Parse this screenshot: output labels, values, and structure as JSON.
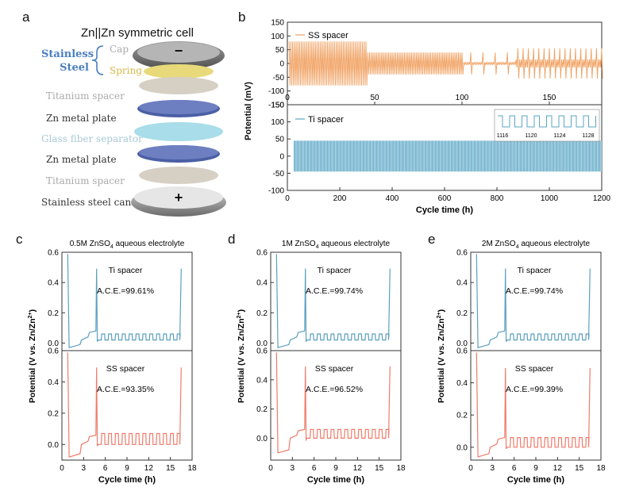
{
  "panel_labels": {
    "a": "a",
    "b": "b",
    "c": "c",
    "d": "d",
    "e": "e"
  },
  "panel_a": {
    "title": "Zn||Zn symmetric cell",
    "stainless_steel_group": "Stainless\nSteel",
    "cap": "Cap",
    "spring": "Spring",
    "layers": [
      "Titanium spacer",
      "Zn metal plate",
      "Glass fiber separator",
      "Zn metal plate",
      "Titanium spacer",
      "Stainless steel can"
    ],
    "minus_sign": "−",
    "plus_sign": "+",
    "colors": {
      "stainless_label": "#4a7fc1",
      "cap_label": "#aaaaaa",
      "spring_label": "#d4b84a"
    }
  },
  "chart_data": [
    {
      "id": "b",
      "type": "line",
      "ylabel": "Potential (mV)",
      "xlabel": "Cycle time (h)",
      "top": {
        "legend": "SS spacer",
        "color": "#f0a060",
        "xticks": [
          "0",
          "50",
          "100",
          "150"
        ],
        "yticks": [
          "150",
          "100",
          "50",
          "0",
          "-50",
          "-100",
          "-150"
        ],
        "xlim": [
          0,
          180
        ],
        "ylim": [
          -150,
          150
        ],
        "amplitude_mV": [
          80,
          40,
          10,
          55
        ],
        "segments_end_cycle": [
          45,
          100,
          130,
          180
        ]
      },
      "bottom": {
        "legend": "Ti spacer",
        "color": "#5aa5c5",
        "xticks": [
          "0",
          "200",
          "400",
          "600",
          "800",
          "1000",
          "1200"
        ],
        "yticks": [
          "150",
          "100",
          "50",
          "0",
          "-50",
          "-100"
        ],
        "xlim": [
          0,
          1200
        ],
        "ylim": [
          -100,
          150
        ],
        "amplitude_mV": 45,
        "inset_ticks": [
          "1116",
          "1120",
          "1124",
          "1128"
        ]
      }
    },
    {
      "id": "c",
      "type": "line",
      "title": "0.5M ZnSO4 aqueous electrolyte",
      "title_main": "0.5M ZnSO",
      "title_sub": "4",
      "title_tail": " aqueous electrolyte",
      "xlabel": "Cycle time (h)",
      "ylabel": "Potential (V vs. Zn/Zn2+)",
      "xticks": [
        "0",
        "3",
        "6",
        "9",
        "12",
        "15",
        "18"
      ],
      "xlim": [
        0,
        18
      ],
      "series": [
        {
          "name": "Ti spacer",
          "ace": "A.C.E.=99.61%",
          "color": "#5b9fbf",
          "yticks": [
            "0.6",
            "0.4",
            "0.2",
            "0.0"
          ],
          "ylim": [
            -0.05,
            0.6
          ],
          "spikes": [
            1.0,
            4.8,
            16.4
          ],
          "plateau_low": -0.03,
          "plateau_mid": 0.02,
          "cycle_amp": 0.04
        },
        {
          "name": "SS spacer",
          "ace": "A.C.E.=93.35%",
          "color": "#ef7b6a",
          "yticks": [
            "0.6",
            "0.4",
            "0.2",
            "0.0"
          ],
          "ylim": [
            -0.1,
            0.6
          ],
          "spikes": [
            1.0,
            4.8,
            16.4
          ],
          "plateau_low": -0.08,
          "plateau_mid": 0.0,
          "cycle_amp": 0.07
        }
      ]
    },
    {
      "id": "d",
      "type": "line",
      "title": "1M ZnSO4 aqueous electrolyte",
      "title_main": "1M ZnSO",
      "title_sub": "4",
      "title_tail": " aqueous electrolyte",
      "xlabel": "Cycle time (h)",
      "ylabel": "Potential (V vs. Zn/Zn2+)",
      "xticks": [
        "0",
        "3",
        "6",
        "9",
        "12",
        "15",
        "18"
      ],
      "xlim": [
        0,
        18
      ],
      "series": [
        {
          "name": "Ti spacer",
          "ace": "A.C.E.=99.74%",
          "color": "#5b9fbf",
          "yticks": [
            "0.6",
            "0.4",
            "0.2",
            "0.0"
          ],
          "ylim": [
            -0.05,
            0.6
          ],
          "spikes": [
            1.0,
            4.8,
            16.4
          ],
          "plateau_low": -0.03,
          "plateau_mid": 0.02,
          "cycle_amp": 0.04
        },
        {
          "name": "SS spacer",
          "ace": "A.C.E.=96.52%",
          "color": "#ef7b6a",
          "yticks": [
            "0.6",
            "0.4",
            "0.2",
            "0.0"
          ],
          "ylim": [
            -0.15,
            0.6
          ],
          "spikes": [
            1.0,
            4.8,
            16.4
          ],
          "plateau_low": -0.1,
          "plateau_mid": 0.0,
          "cycle_amp": 0.06
        }
      ]
    },
    {
      "id": "e",
      "type": "line",
      "title": "2M ZnSO4 aqueous electrolyte",
      "title_main": "2M ZnSO",
      "title_sub": "4",
      "title_tail": " aqueous electrolyte",
      "xlabel": "Cycle time (h)",
      "ylabel": "Potential (V vs. Zn/Zn2+)",
      "xticks": [
        "0",
        "3",
        "6",
        "9",
        "12",
        "15",
        "18"
      ],
      "xlim": [
        0,
        18
      ],
      "series": [
        {
          "name": "Ti spacer",
          "ace": "A.C.E.=99.74%",
          "color": "#5b9fbf",
          "yticks": [
            "0.6",
            "0.4",
            "0.2",
            "0.0"
          ],
          "ylim": [
            -0.05,
            0.6
          ],
          "spikes": [
            1.0,
            4.8,
            16.4
          ],
          "plateau_low": -0.03,
          "plateau_mid": 0.02,
          "cycle_amp": 0.04
        },
        {
          "name": "SS spacer",
          "ace": "A.C.E.=99.39%",
          "color": "#ef7b6a",
          "yticks": [
            "0.6",
            "0.4",
            "0.2",
            "0.0"
          ],
          "ylim": [
            -0.08,
            0.6
          ],
          "spikes": [
            1.0,
            4.8,
            16.4
          ],
          "plateau_low": -0.06,
          "plateau_mid": 0.0,
          "cycle_amp": 0.06
        }
      ]
    }
  ]
}
